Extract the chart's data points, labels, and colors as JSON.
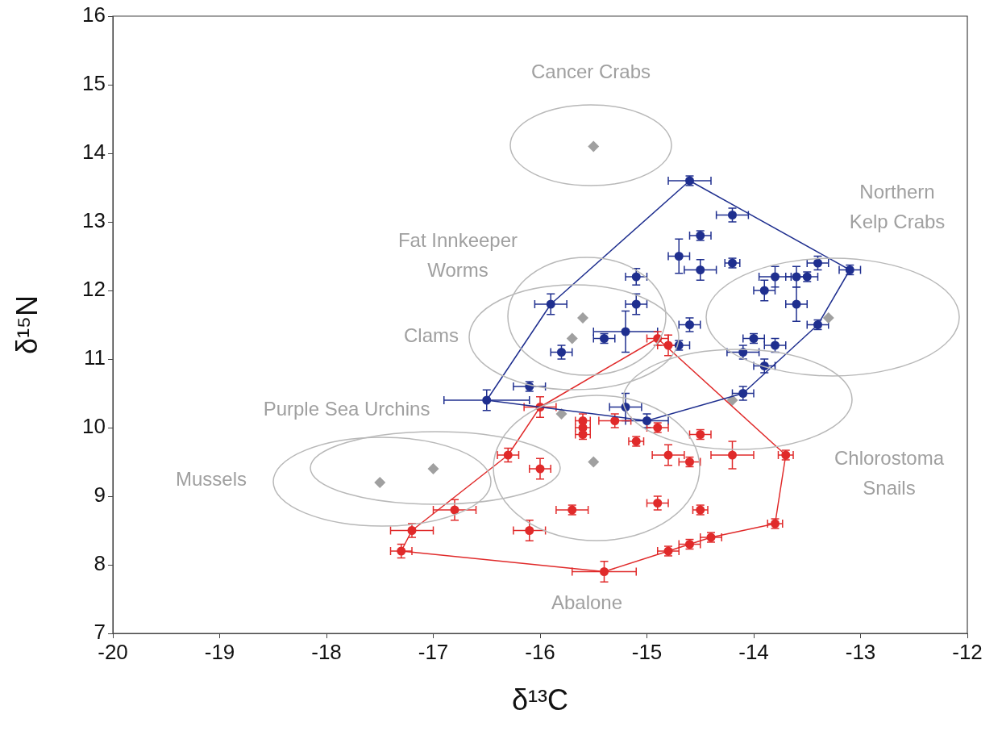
{
  "chart_data": {
    "type": "scatter",
    "xlabel": "δ¹³C",
    "ylabel": "δ¹⁵N",
    "xlim": [
      -20,
      -12
    ],
    "xticks": [
      -20,
      -19,
      -18,
      -17,
      -16,
      -15,
      -14,
      -13,
      -12
    ],
    "ylim": [
      7,
      16
    ],
    "yticks": [
      7,
      8,
      9,
      10,
      11,
      12,
      13,
      14,
      15,
      16
    ],
    "grid": false,
    "legend": false,
    "series": [
      {
        "type": "line",
        "marker": "none",
        "color": "#1f2f8f",
        "x": [
          -16.5,
          -15.9,
          -14.6,
          -13.1
        ],
        "values": [
          10.4,
          11.8,
          13.6,
          12.3
        ]
      },
      {
        "type": "line",
        "marker": "none",
        "color": "#1f2f8f",
        "x": [
          -16.5,
          -15.0,
          -14.1,
          -13.4,
          -13.1
        ],
        "values": [
          10.4,
          10.1,
          10.5,
          11.5,
          12.3
        ]
      },
      {
        "type": "line",
        "marker": "none",
        "color": "#e02a2a",
        "x": [
          -17.3,
          -17.2,
          -16.3,
          -16.0,
          -14.9,
          -13.7
        ],
        "values": [
          8.2,
          8.5,
          9.6,
          10.3,
          11.3,
          9.6
        ]
      },
      {
        "type": "line",
        "marker": "none",
        "color": "#e02a2a",
        "x": [
          -17.3,
          -15.4,
          -14.8,
          -14.6,
          -14.4,
          -13.8,
          -13.7
        ],
        "values": [
          8.2,
          7.9,
          8.2,
          8.3,
          8.4,
          8.6,
          9.6
        ]
      },
      {
        "marker": "diamond",
        "color": "#a0a0a0",
        "x": [
          -15.5,
          -15.6,
          -15.7,
          -13.3,
          -14.2,
          -15.8,
          -15.5,
          -17.0,
          -17.5
        ],
        "values": [
          14.1,
          11.6,
          11.3,
          11.6,
          10.4,
          10.2,
          9.5,
          9.4,
          9.2
        ]
      },
      {
        "marker": "circle",
        "color": "#1f2f8f",
        "x": [
          -14.6,
          -14.2,
          -14.5,
          -14.7,
          -14.2,
          -14.5,
          -13.1,
          -13.4,
          -15.1,
          -13.8,
          -13.6,
          -13.5,
          -13.9,
          -15.9,
          -15.1,
          -13.6,
          -14.6,
          -13.4,
          -15.2,
          -15.4,
          -14.0,
          -14.7,
          -13.8,
          -15.8,
          -14.1,
          -13.9,
          -16.1,
          -14.1,
          -16.5,
          -15.2,
          -15.0
        ],
        "values": [
          13.6,
          13.1,
          12.8,
          12.5,
          12.4,
          12.3,
          12.3,
          12.4,
          12.2,
          12.2,
          12.2,
          12.2,
          12.0,
          11.8,
          11.8,
          11.8,
          11.5,
          11.5,
          11.4,
          11.3,
          11.3,
          11.2,
          11.2,
          11.1,
          11.1,
          10.9,
          10.6,
          10.5,
          10.4,
          10.3,
          10.1
        ],
        "xerrors": [
          0.2,
          0.15,
          0.1,
          0.1,
          0.07,
          0.15,
          0.1,
          0.1,
          0.1,
          0.15,
          0.1,
          0.1,
          0.1,
          0.15,
          0.1,
          0.1,
          0.1,
          0.1,
          0.3,
          0.1,
          0.1,
          0.1,
          0.1,
          0.1,
          0.15,
          0.1,
          0.15,
          0.1,
          0.4,
          0.15,
          0.2
        ],
        "errors": [
          0.07,
          0.1,
          0.07,
          0.25,
          0.07,
          0.15,
          0.07,
          0.1,
          0.12,
          0.15,
          0.15,
          0.07,
          0.15,
          0.15,
          0.15,
          0.25,
          0.1,
          0.07,
          0.3,
          0.07,
          0.07,
          0.07,
          0.1,
          0.1,
          0.1,
          0.1,
          0.07,
          0.1,
          0.15,
          0.2,
          0.1
        ]
      },
      {
        "marker": "circle",
        "color": "#e02a2a",
        "x": [
          -14.9,
          -14.8,
          -16.0,
          -15.6,
          -15.3,
          -15.6,
          -15.6,
          -14.9,
          -14.5,
          -15.1,
          -16.3,
          -14.8,
          -14.6,
          -14.2,
          -13.7,
          -16.0,
          -16.8,
          -17.2,
          -17.3,
          -15.7,
          -14.9,
          -14.5,
          -16.1,
          -13.8,
          -14.4,
          -14.6,
          -14.8,
          -15.4
        ],
        "values": [
          11.3,
          11.2,
          10.3,
          10.1,
          10.1,
          10.0,
          9.9,
          10.0,
          9.9,
          9.8,
          9.6,
          9.6,
          9.5,
          9.6,
          9.6,
          9.4,
          8.8,
          8.5,
          8.2,
          8.8,
          8.9,
          8.8,
          8.5,
          8.6,
          8.4,
          8.3,
          8.2,
          7.9
        ],
        "xerrors": [
          0.1,
          0.1,
          0.15,
          0.07,
          0.15,
          0.07,
          0.07,
          0.1,
          0.1,
          0.07,
          0.1,
          0.15,
          0.1,
          0.2,
          0.07,
          0.1,
          0.2,
          0.2,
          0.1,
          0.15,
          0.1,
          0.07,
          0.15,
          0.07,
          0.1,
          0.1,
          0.1,
          0.3
        ],
        "errors": [
          0.1,
          0.15,
          0.15,
          0.1,
          0.1,
          0.07,
          0.07,
          0.07,
          0.07,
          0.07,
          0.1,
          0.15,
          0.07,
          0.2,
          0.07,
          0.15,
          0.15,
          0.1,
          0.1,
          0.07,
          0.1,
          0.07,
          0.15,
          0.07,
          0.07,
          0.07,
          0.07,
          0.15
        ]
      }
    ],
    "annotations": [
      "Cancer Crabs",
      "Northern\nKelp Crabs",
      "Fat Innkeeper\nWorms",
      "Clams",
      "Purple Sea Urchins",
      "Mussels",
      "Chlorostoma\nSnails",
      "Abalone"
    ]
  }
}
